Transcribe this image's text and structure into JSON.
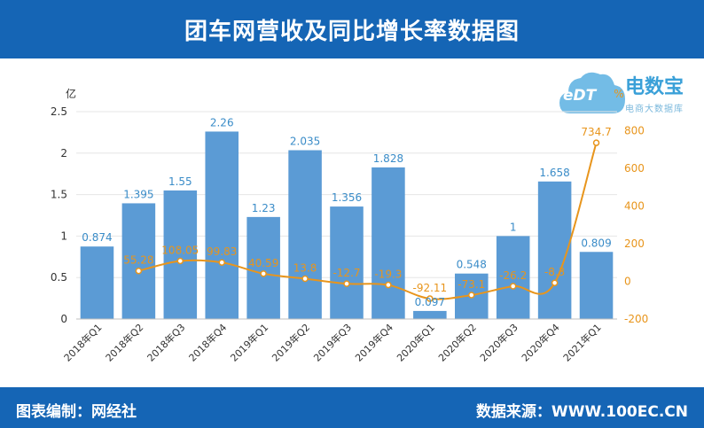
{
  "header": {
    "title": "团车网营收及同比增长率数据图"
  },
  "footer": {
    "left": "图表编制：网经社",
    "right": "数据来源：WWW.100EC.CN"
  },
  "logo": {
    "cloud_text": "eDT",
    "name": "电数宝",
    "sub": "电商大数据库"
  },
  "colors": {
    "bar": "#5b9bd5",
    "line": "#e8951c",
    "header": "#1565b5",
    "bar_label": "#3a8cc8"
  },
  "chart_data": {
    "type": "bar",
    "categories": [
      "2018年Q1",
      "2018年Q2",
      "2018年Q3",
      "2018年Q4",
      "2019年Q1",
      "2019年Q2",
      "2019年Q3",
      "2019年Q4",
      "2020年Q1",
      "2020年Q2",
      "2020年Q3",
      "2020年Q4",
      "2021年Q1"
    ],
    "series": [
      {
        "type": "bar",
        "axis": "left",
        "values": [
          0.874,
          1.395,
          1.55,
          2.26,
          1.23,
          2.035,
          1.356,
          1.828,
          0.097,
          0.548,
          1,
          1.658,
          0.809
        ],
        "labels": [
          "0.874",
          "1.395",
          "1.55",
          "2.26",
          "1.23",
          "2.035",
          "1.356",
          "1.828",
          "0.097",
          "0.548",
          "1",
          "1.658",
          "0.809"
        ]
      },
      {
        "type": "line",
        "axis": "right",
        "values": [
          null,
          55.28,
          108.05,
          99.83,
          40.59,
          13.8,
          -12.7,
          -19.3,
          -92.11,
          -73.1,
          -26.2,
          -8.3,
          734.7
        ],
        "labels": [
          "",
          "55.28",
          "108.05",
          "99.83",
          "40.59",
          "13.8",
          "-12.7",
          "-19.3",
          "-92.11",
          "-73.1",
          "-26.2",
          "-8.3",
          "734.7"
        ]
      }
    ],
    "ylabel": "亿",
    "ylabel_right": "%",
    "ylim": [
      0,
      2.5
    ],
    "yticks": [
      "0",
      "0.5",
      "1",
      "1.5",
      "2",
      "2.5"
    ],
    "y2lim": [
      -200,
      900
    ],
    "y2ticks": [
      "-200",
      "0",
      "200",
      "400",
      "600",
      "800"
    ],
    "grid": true
  }
}
